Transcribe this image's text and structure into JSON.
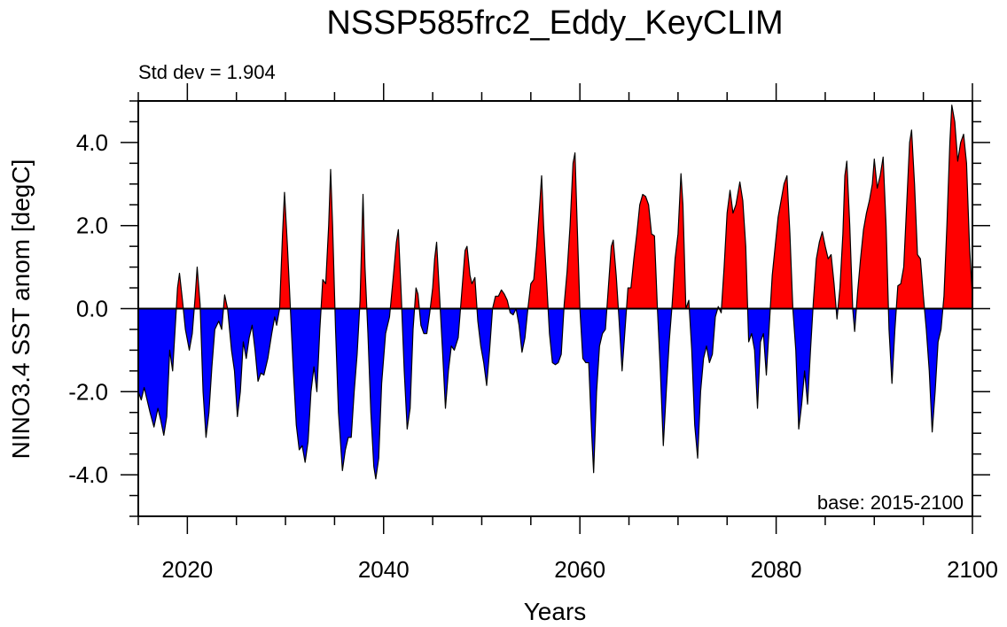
{
  "chart_data": {
    "type": "area",
    "title": "NSSP585frc2_Eddy_KeyCLIM",
    "subtitle_left": "Std dev = 1.904",
    "annotation": "base: 2015-2100",
    "xlabel": "Years",
    "ylabel": "NINO3.4 SST anom [degC]",
    "xlim": [
      2015,
      2100
    ],
    "ylim": [
      -5,
      5
    ],
    "x_ticks": [
      2020,
      2040,
      2060,
      2080,
      2100
    ],
    "x_tick_labels": [
      "2020",
      "2040",
      "2060",
      "2080",
      "2100"
    ],
    "y_ticks": [
      -4,
      -2,
      0,
      2,
      4
    ],
    "y_tick_labels": [
      "-4.0",
      "-2.0",
      "0.0",
      "2.0",
      "4.0"
    ],
    "positive_color": "#ff0000",
    "negative_color": "#0000ff",
    "series": [
      {
        "name": "NINO3.4 SST anomaly",
        "points": [
          [
            2015.0,
            -2.0
          ],
          [
            2015.3,
            -2.2
          ],
          [
            2015.6,
            -1.9
          ],
          [
            2016.2,
            -2.5
          ],
          [
            2016.6,
            -2.85
          ],
          [
            2017.0,
            -2.4
          ],
          [
            2017.3,
            -2.7
          ],
          [
            2017.6,
            -3.05
          ],
          [
            2017.9,
            -2.6
          ],
          [
            2018.2,
            -1.0
          ],
          [
            2018.5,
            -1.5
          ],
          [
            2018.8,
            -0.3
          ],
          [
            2019.0,
            0.5
          ],
          [
            2019.2,
            0.85
          ],
          [
            2019.5,
            0.2
          ],
          [
            2019.8,
            -0.5
          ],
          [
            2020.2,
            -1.0
          ],
          [
            2020.5,
            -0.6
          ],
          [
            2020.8,
            0.3
          ],
          [
            2021.0,
            1.0
          ],
          [
            2021.3,
            0.1
          ],
          [
            2021.6,
            -2.0
          ],
          [
            2021.9,
            -3.1
          ],
          [
            2022.2,
            -2.5
          ],
          [
            2022.5,
            -1.4
          ],
          [
            2022.8,
            -0.5
          ],
          [
            2023.2,
            -0.3
          ],
          [
            2023.5,
            -0.5
          ],
          [
            2023.8,
            0.33
          ],
          [
            2024.1,
            0.0
          ],
          [
            2024.5,
            -1.0
          ],
          [
            2024.8,
            -1.5
          ],
          [
            2025.1,
            -2.6
          ],
          [
            2025.4,
            -2.0
          ],
          [
            2025.7,
            -0.8
          ],
          [
            2026.0,
            -1.2
          ],
          [
            2026.3,
            -0.7
          ],
          [
            2026.6,
            -0.4
          ],
          [
            2026.9,
            -1.0
          ],
          [
            2027.2,
            -1.75
          ],
          [
            2027.5,
            -1.55
          ],
          [
            2027.8,
            -1.6
          ],
          [
            2028.2,
            -1.2
          ],
          [
            2028.6,
            -0.6
          ],
          [
            2028.9,
            -0.2
          ],
          [
            2029.1,
            -0.4
          ],
          [
            2029.4,
            0.0
          ],
          [
            2029.7,
            1.8
          ],
          [
            2029.9,
            2.8
          ],
          [
            2030.2,
            1.5
          ],
          [
            2030.5,
            0.0
          ],
          [
            2030.8,
            -1.5
          ],
          [
            2031.1,
            -2.8
          ],
          [
            2031.4,
            -3.4
          ],
          [
            2031.7,
            -3.3
          ],
          [
            2032.0,
            -3.7
          ],
          [
            2032.3,
            -3.2
          ],
          [
            2032.6,
            -2.0
          ],
          [
            2032.9,
            -1.4
          ],
          [
            2033.2,
            -2.0
          ],
          [
            2033.5,
            -0.5
          ],
          [
            2033.8,
            0.7
          ],
          [
            2034.1,
            0.6
          ],
          [
            2034.4,
            2.0
          ],
          [
            2034.6,
            3.35
          ],
          [
            2034.8,
            2.0
          ],
          [
            2035.1,
            -0.5
          ],
          [
            2035.4,
            -2.5
          ],
          [
            2035.8,
            -3.9
          ],
          [
            2036.1,
            -3.4
          ],
          [
            2036.4,
            -3.1
          ],
          [
            2036.7,
            -3.1
          ],
          [
            2037.0,
            -2.0
          ],
          [
            2037.3,
            -1.1
          ],
          [
            2037.6,
            0.2
          ],
          [
            2037.9,
            2.75
          ],
          [
            2038.1,
            1.0
          ],
          [
            2038.4,
            -0.6
          ],
          [
            2038.7,
            -2.5
          ],
          [
            2039.0,
            -3.8
          ],
          [
            2039.2,
            -4.1
          ],
          [
            2039.5,
            -3.6
          ],
          [
            2039.8,
            -1.8
          ],
          [
            2040.2,
            -0.6
          ],
          [
            2040.6,
            -0.2
          ],
          [
            2041.0,
            0.8
          ],
          [
            2041.3,
            1.6
          ],
          [
            2041.5,
            1.9
          ],
          [
            2041.8,
            0.3
          ],
          [
            2042.1,
            -1.5
          ],
          [
            2042.4,
            -2.9
          ],
          [
            2042.7,
            -2.4
          ],
          [
            2043.0,
            -0.5
          ],
          [
            2043.3,
            0.5
          ],
          [
            2043.5,
            0.35
          ],
          [
            2043.8,
            -0.4
          ],
          [
            2044.1,
            -0.6
          ],
          [
            2044.4,
            -0.6
          ],
          [
            2044.7,
            -0.1
          ],
          [
            2045.0,
            0.5
          ],
          [
            2045.2,
            1.2
          ],
          [
            2045.4,
            1.6
          ],
          [
            2045.7,
            0.3
          ],
          [
            2046.0,
            -1.0
          ],
          [
            2046.3,
            -2.4
          ],
          [
            2046.6,
            -1.5
          ],
          [
            2046.9,
            -0.9
          ],
          [
            2047.2,
            -1.0
          ],
          [
            2047.6,
            -0.7
          ],
          [
            2047.9,
            0.2
          ],
          [
            2048.3,
            1.4
          ],
          [
            2048.5,
            1.5
          ],
          [
            2048.8,
            0.8
          ],
          [
            2049.0,
            0.6
          ],
          [
            2049.3,
            0.75
          ],
          [
            2049.6,
            -0.3
          ],
          [
            2049.9,
            -0.9
          ],
          [
            2050.2,
            -1.3
          ],
          [
            2050.5,
            -1.85
          ],
          [
            2050.8,
            -1.0
          ],
          [
            2051.1,
            0.0
          ],
          [
            2051.4,
            0.3
          ],
          [
            2051.7,
            0.3
          ],
          [
            2052.0,
            0.45
          ],
          [
            2052.3,
            0.35
          ],
          [
            2052.6,
            0.2
          ],
          [
            2052.9,
            -0.1
          ],
          [
            2053.2,
            -0.15
          ],
          [
            2053.5,
            0.0
          ],
          [
            2053.8,
            -0.4
          ],
          [
            2054.1,
            -1.05
          ],
          [
            2054.4,
            -0.7
          ],
          [
            2054.7,
            0.0
          ],
          [
            2055.0,
            0.6
          ],
          [
            2055.3,
            0.7
          ],
          [
            2055.6,
            1.5
          ],
          [
            2055.9,
            2.5
          ],
          [
            2056.1,
            3.2
          ],
          [
            2056.3,
            2.0
          ],
          [
            2056.6,
            0.7
          ],
          [
            2056.9,
            -0.6
          ],
          [
            2057.2,
            -1.3
          ],
          [
            2057.5,
            -1.35
          ],
          [
            2057.8,
            -1.3
          ],
          [
            2058.1,
            -1.1
          ],
          [
            2058.4,
            0.1
          ],
          [
            2058.7,
            0.9
          ],
          [
            2059.0,
            2.0
          ],
          [
            2059.3,
            3.5
          ],
          [
            2059.5,
            3.75
          ],
          [
            2059.7,
            2.2
          ],
          [
            2060.0,
            0.0
          ],
          [
            2060.3,
            -1.2
          ],
          [
            2060.6,
            -1.3
          ],
          [
            2060.9,
            -1.3
          ],
          [
            2061.2,
            -3.0
          ],
          [
            2061.4,
            -3.95
          ],
          [
            2061.7,
            -2.0
          ],
          [
            2062.0,
            -0.9
          ],
          [
            2062.3,
            -0.6
          ],
          [
            2062.6,
            -0.5
          ],
          [
            2062.9,
            0.5
          ],
          [
            2063.2,
            1.5
          ],
          [
            2063.4,
            1.65
          ],
          [
            2063.7,
            0.8
          ],
          [
            2064.0,
            -0.3
          ],
          [
            2064.3,
            -1.5
          ],
          [
            2064.6,
            -0.5
          ],
          [
            2064.9,
            0.5
          ],
          [
            2065.2,
            0.5
          ],
          [
            2065.5,
            1.2
          ],
          [
            2065.8,
            1.8
          ],
          [
            2066.1,
            2.5
          ],
          [
            2066.4,
            2.75
          ],
          [
            2066.7,
            2.7
          ],
          [
            2067.0,
            2.5
          ],
          [
            2067.3,
            1.8
          ],
          [
            2067.6,
            1.75
          ],
          [
            2067.9,
            0.0
          ],
          [
            2068.2,
            -1.5
          ],
          [
            2068.5,
            -3.3
          ],
          [
            2068.8,
            -2.0
          ],
          [
            2069.1,
            -0.8
          ],
          [
            2069.4,
            0.1
          ],
          [
            2069.7,
            1.2
          ],
          [
            2070.0,
            1.8
          ],
          [
            2070.3,
            3.25
          ],
          [
            2070.5,
            2.5
          ],
          [
            2070.8,
            0.0
          ],
          [
            2071.1,
            0.2
          ],
          [
            2071.4,
            -1.0
          ],
          [
            2071.7,
            -2.8
          ],
          [
            2072.0,
            -3.6
          ],
          [
            2072.3,
            -2.0
          ],
          [
            2072.6,
            -1.2
          ],
          [
            2072.9,
            -0.9
          ],
          [
            2073.2,
            -1.3
          ],
          [
            2073.5,
            -1.1
          ],
          [
            2073.8,
            -0.2
          ],
          [
            2074.1,
            0.05
          ],
          [
            2074.4,
            -0.1
          ],
          [
            2074.7,
            1.0
          ],
          [
            2075.0,
            2.3
          ],
          [
            2075.3,
            2.85
          ],
          [
            2075.6,
            2.3
          ],
          [
            2075.9,
            2.5
          ],
          [
            2076.3,
            3.05
          ],
          [
            2076.6,
            2.6
          ],
          [
            2076.9,
            1.5
          ],
          [
            2077.2,
            -0.8
          ],
          [
            2077.5,
            -0.6
          ],
          [
            2077.8,
            -1.0
          ],
          [
            2078.1,
            -2.4
          ],
          [
            2078.4,
            -0.8
          ],
          [
            2078.7,
            -0.6
          ],
          [
            2079.0,
            -1.6
          ],
          [
            2079.3,
            -0.4
          ],
          [
            2079.6,
            0.8
          ],
          [
            2079.9,
            1.5
          ],
          [
            2080.2,
            2.2
          ],
          [
            2080.5,
            2.6
          ],
          [
            2080.8,
            3.0
          ],
          [
            2081.1,
            3.2
          ],
          [
            2081.4,
            1.8
          ],
          [
            2081.7,
            0.0
          ],
          [
            2082.0,
            -1.0
          ],
          [
            2082.3,
            -2.9
          ],
          [
            2082.6,
            -2.3
          ],
          [
            2082.9,
            -1.5
          ],
          [
            2083.2,
            -2.3
          ],
          [
            2083.5,
            -1.0
          ],
          [
            2083.8,
            0.2
          ],
          [
            2084.1,
            1.2
          ],
          [
            2084.4,
            1.6
          ],
          [
            2084.7,
            1.85
          ],
          [
            2085.0,
            1.5
          ],
          [
            2085.3,
            1.2
          ],
          [
            2085.6,
            1.3
          ],
          [
            2085.9,
            0.6
          ],
          [
            2086.2,
            -0.25
          ],
          [
            2086.5,
            0.5
          ],
          [
            2086.8,
            1.8
          ],
          [
            2087.0,
            3.2
          ],
          [
            2087.2,
            3.55
          ],
          [
            2087.5,
            2.0
          ],
          [
            2087.8,
            0.0
          ],
          [
            2088.0,
            -0.55
          ],
          [
            2088.3,
            0.4
          ],
          [
            2088.6,
            1.2
          ],
          [
            2088.9,
            1.9
          ],
          [
            2089.2,
            2.3
          ],
          [
            2089.5,
            2.6
          ],
          [
            2089.8,
            3.0
          ],
          [
            2090.0,
            3.6
          ],
          [
            2090.3,
            2.9
          ],
          [
            2090.6,
            3.2
          ],
          [
            2090.9,
            3.65
          ],
          [
            2091.2,
            2.0
          ],
          [
            2091.5,
            -0.5
          ],
          [
            2091.8,
            -1.8
          ],
          [
            2092.1,
            -0.5
          ],
          [
            2092.4,
            0.55
          ],
          [
            2092.7,
            0.6
          ],
          [
            2093.0,
            1.0
          ],
          [
            2093.3,
            2.5
          ],
          [
            2093.6,
            4.0
          ],
          [
            2093.8,
            4.3
          ],
          [
            2094.1,
            3.0
          ],
          [
            2094.4,
            1.3
          ],
          [
            2094.7,
            1.2
          ],
          [
            2095.0,
            0.3
          ],
          [
            2095.3,
            -0.5
          ],
          [
            2095.6,
            -1.5
          ],
          [
            2095.9,
            -2.97
          ],
          [
            2096.2,
            -2.0
          ],
          [
            2096.5,
            -0.8
          ],
          [
            2096.8,
            -0.5
          ],
          [
            2097.1,
            0.3
          ],
          [
            2097.4,
            2.0
          ],
          [
            2097.7,
            4.0
          ],
          [
            2097.9,
            4.9
          ],
          [
            2098.2,
            4.5
          ],
          [
            2098.5,
            3.55
          ],
          [
            2098.8,
            4.0
          ],
          [
            2099.1,
            4.2
          ],
          [
            2099.4,
            3.5
          ],
          [
            2099.7,
            1.5
          ],
          [
            2100.0,
            0.3
          ]
        ]
      }
    ]
  }
}
